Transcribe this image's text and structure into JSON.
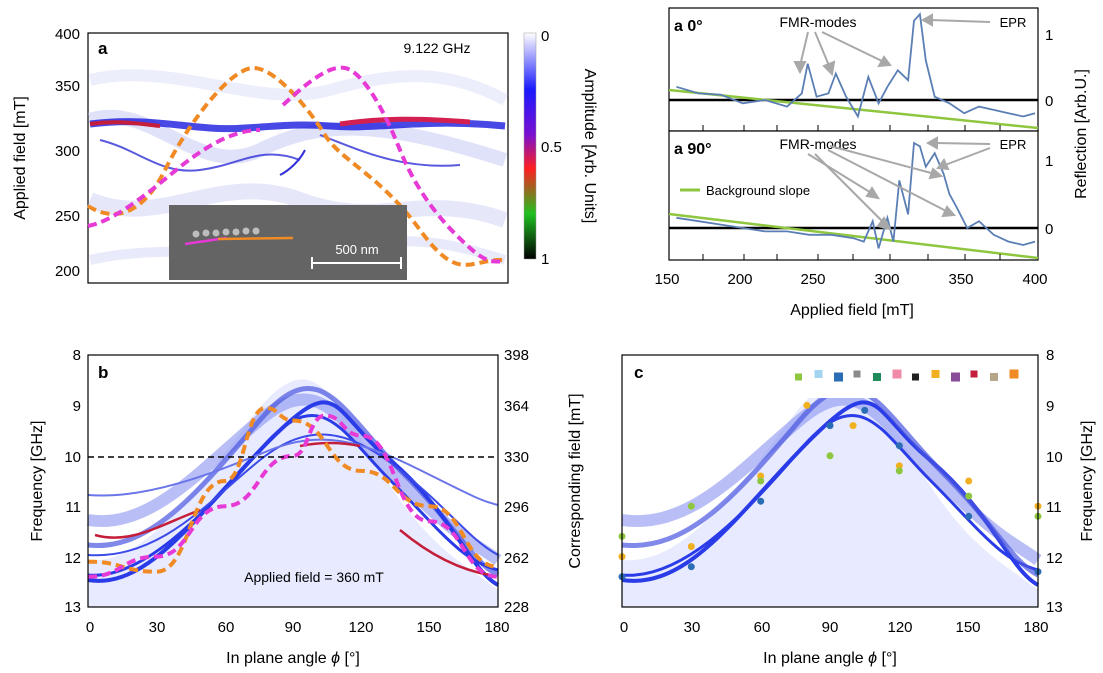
{
  "colors": {
    "orange": "#f08a24",
    "magenta": "#e639d6",
    "green": "#8ec63f",
    "trace": "#5b7fb5",
    "arrow": "#a8a8a8",
    "blue": "#2a3be8"
  },
  "panel_a": {
    "label": "a",
    "frequency_text": "9.122 GHz",
    "ylabel": "Applied field [mT]",
    "yticks": [
      "400",
      "350",
      "300",
      "250",
      "200"
    ],
    "colorbar_label": "Amplitude [Arb. Units]",
    "colorbar_ticks": [
      "0",
      "0.5",
      "1"
    ],
    "scalebar_text": "500 nm"
  },
  "panel_spectra": {
    "top_label": "a 0°",
    "bottom_label": "a 90°",
    "annotation_fmr": "FMR-modes",
    "annotation_epr": "EPR",
    "legend_text": "Background slope",
    "ylabel": "Reflection [Arb.U.]",
    "yticks_top": [
      "1",
      "0"
    ],
    "yticks_bottom": [
      "1",
      "0"
    ],
    "xlabel": "Applied field [mT]",
    "xticks": [
      "150",
      "200",
      "250",
      "300",
      "350",
      "400"
    ]
  },
  "panel_b": {
    "label": "b",
    "ylabel": "Frequency [GHz]",
    "yticks": [
      "8",
      "9",
      "10",
      "11",
      "12",
      "13"
    ],
    "ylabel_right": "Corresponding field [mT]",
    "yticks_right": [
      "398",
      "364",
      "330",
      "296",
      "262",
      "228"
    ],
    "xlabel": "In plane angle",
    "xlabel_symbol": "ϕ",
    "xlabel_unit": "[°]",
    "xticks": [
      "0",
      "30",
      "60",
      "90",
      "120",
      "150",
      "180"
    ],
    "annotation": "Applied field = 360 mT"
  },
  "panel_c": {
    "label": "c",
    "ylabel": "Frequency [GHz]",
    "yticks": [
      "8",
      "9",
      "10",
      "11",
      "12",
      "13"
    ],
    "xlabel": "In plane angle",
    "xlabel_symbol": "ϕ",
    "xlabel_unit": "[°]",
    "xticks": [
      "0",
      "30",
      "60",
      "90",
      "120",
      "150",
      "180"
    ],
    "legend_colors": [
      "#8ec63f",
      "#a3d4f0",
      "#2a6db5",
      "#8a8a8a",
      "#1f8a5a",
      "#f08ca8",
      "#202020",
      "#f0b020",
      "#8a4a9a",
      "#c41e3a",
      "#b5a68a",
      "#f08a24"
    ]
  },
  "chart_data": [
    {
      "type": "heatmap",
      "panel": "a",
      "ylabel": "Applied field [mT]",
      "ylim": [
        200,
        400
      ],
      "series": [
        {
          "curve": "orange",
          "x": [
            0,
            30,
            60,
            90,
            120,
            150,
            180
          ],
          "y": [
            260,
            250,
            320,
            365,
            320,
            262,
            262
          ]
        },
        {
          "curve": "magenta",
          "x": [
            0,
            30,
            60,
            90,
            120,
            150,
            180
          ],
          "y": [
            245,
            270,
            300,
            365,
            320,
            260,
            245
          ]
        }
      ],
      "resonance_band_mT": 320
    },
    {
      "type": "line",
      "panel": "a 0°",
      "xlabel": "Applied field [mT]",
      "ylabel": "Reflection [Arb.U.]",
      "xlim": [
        150,
        400
      ],
      "ylim": [
        -0.35,
        1.3
      ],
      "x": [
        155,
        170,
        185,
        200,
        215,
        230,
        240,
        244,
        250,
        258,
        263,
        270,
        278,
        285,
        292,
        298,
        305,
        312,
        316,
        320,
        324,
        330,
        340,
        350,
        360,
        370,
        380,
        390,
        398
      ],
      "y": [
        0.2,
        0.1,
        0.08,
        -0.05,
        0.0,
        -0.1,
        0.1,
        0.55,
        0.05,
        0.1,
        0.4,
        0.05,
        -0.25,
        0.35,
        -0.05,
        0.2,
        0.45,
        0.3,
        1.2,
        1.3,
        0.6,
        0.05,
        -0.05,
        -0.2,
        -0.1,
        -0.15,
        -0.2,
        -0.25,
        -0.2
      ],
      "background_slope": {
        "x": [
          150,
          400
        ],
        "y": [
          0.15,
          -0.25
        ]
      }
    },
    {
      "type": "line",
      "panel": "a 90°",
      "xlabel": "Applied field [mT]",
      "ylabel": "Reflection [Arb.U.]",
      "xlim": [
        150,
        400
      ],
      "ylim": [
        -0.35,
        1.3
      ],
      "x": [
        155,
        170,
        185,
        200,
        215,
        230,
        245,
        260,
        275,
        282,
        288,
        292,
        298,
        302,
        306,
        312,
        316,
        320,
        324,
        330,
        336,
        340,
        345,
        352,
        360,
        370,
        380,
        390,
        398
      ],
      "y": [
        0.15,
        0.1,
        0.05,
        0.0,
        -0.05,
        -0.05,
        -0.1,
        -0.1,
        -0.15,
        -0.2,
        0.1,
        -0.3,
        0.15,
        -0.2,
        0.7,
        0.2,
        1.25,
        1.2,
        0.9,
        1.1,
        0.8,
        0.5,
        0.3,
        0.0,
        0.1,
        -0.1,
        -0.2,
        -0.25,
        -0.2
      ],
      "background_slope": {
        "x": [
          150,
          400
        ],
        "y": [
          0.15,
          -0.2
        ]
      }
    },
    {
      "type": "heatmap",
      "panel": "b",
      "xlabel": "In plane angle ϕ [°]",
      "ylabel": "Frequency [GHz]",
      "xlim": [
        0,
        180
      ],
      "ylim": [
        8,
        13
      ],
      "series": [
        {
          "curve": "orange",
          "x": [
            0,
            30,
            60,
            78,
            90,
            120,
            150,
            180
          ],
          "y": [
            12.1,
            12.3,
            10.5,
            9.05,
            9.3,
            10.3,
            11.0,
            12.2
          ]
        },
        {
          "curve": "magenta",
          "x": [
            0,
            30,
            60,
            90,
            104,
            120,
            150,
            180
          ],
          "y": [
            12.4,
            12.0,
            11.0,
            10.0,
            9.2,
            9.6,
            11.3,
            12.4
          ]
        }
      ],
      "dashed_reference_GHz": 10
    },
    {
      "type": "scatter",
      "panel": "c",
      "xlabel": "In plane angle ϕ [°]",
      "ylabel": "Frequency [GHz]",
      "xlim": [
        0,
        180
      ],
      "ylim": [
        8,
        13
      ],
      "series": [
        {
          "color": "#f0b020",
          "x": [
            0,
            30,
            60,
            80,
            100,
            120,
            150,
            180
          ],
          "y": [
            12.0,
            11.8,
            10.4,
            9.0,
            9.4,
            10.2,
            10.5,
            11.0
          ]
        },
        {
          "color": "#8ec63f",
          "x": [
            0,
            30,
            60,
            90,
            120,
            150,
            180
          ],
          "y": [
            11.6,
            11.0,
            10.5,
            10.0,
            10.3,
            10.8,
            11.2
          ]
        },
        {
          "color": "#2a6db5",
          "x": [
            0,
            30,
            60,
            90,
            105,
            120,
            150,
            180
          ],
          "y": [
            12.4,
            12.2,
            10.9,
            9.4,
            9.1,
            9.8,
            11.2,
            12.3
          ]
        }
      ]
    }
  ]
}
